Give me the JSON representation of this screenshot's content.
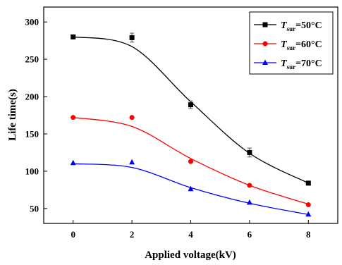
{
  "chart_data": {
    "type": "scatter",
    "xlabel": "Applied voltage(kV)",
    "ylabel": "Life time(s)",
    "xlim": [
      -1,
      9
    ],
    "ylim": [
      30,
      320
    ],
    "xticks": [
      0,
      2,
      4,
      6,
      8
    ],
    "yticks": [
      50,
      100,
      150,
      200,
      250,
      300
    ],
    "grid": false,
    "legend_position": "top-right",
    "x": [
      0,
      2,
      4,
      6,
      8
    ],
    "series": [
      {
        "name_main": "T",
        "name_sub": "sur",
        "name_value": "=50°C",
        "marker": "square",
        "color": "#000000",
        "values": [
          280,
          279,
          189,
          125,
          84
        ],
        "errors": [
          2,
          6,
          5,
          6,
          2
        ],
        "fit": [
          280,
          267,
          193,
          124,
          84
        ]
      },
      {
        "name_main": "T",
        "name_sub": "sur",
        "name_value": "=60°C",
        "marker": "circle",
        "color": "#ff0000",
        "values": [
          172,
          172,
          113,
          81,
          55
        ],
        "errors": [
          0,
          0,
          0,
          0,
          0
        ],
        "fit": [
          172,
          160,
          117,
          81,
          56
        ]
      },
      {
        "name_main": "T",
        "name_sub": "sur",
        "name_value": "=70°C",
        "marker": "triangle",
        "color": "#0000ff",
        "values": [
          111,
          112,
          76,
          58,
          42
        ],
        "errors": [
          0,
          0,
          0,
          0,
          0
        ],
        "fit": [
          110,
          105,
          78,
          57,
          42
        ]
      }
    ]
  }
}
